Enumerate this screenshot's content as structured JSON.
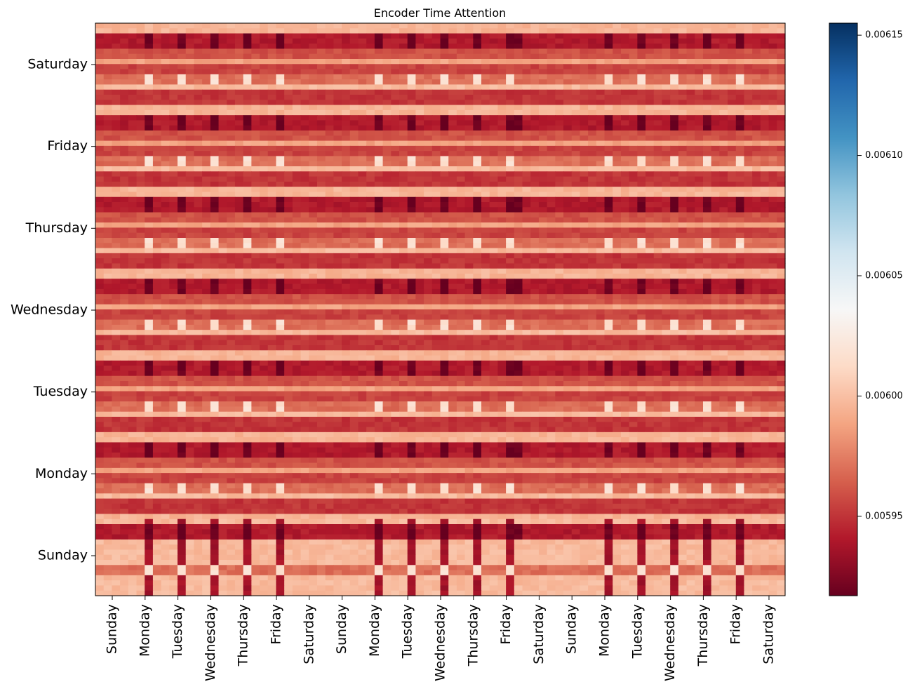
{
  "chart_data": {
    "type": "heatmap",
    "title": "Encoder Time Attention",
    "xlabel": "",
    "ylabel": "",
    "x_tick_labels": [
      "Sunday",
      "Monday",
      "Tuesday",
      "Wednesday",
      "Thursday",
      "Friday",
      "Saturday",
      "Sunday",
      "Monday",
      "Tuesday",
      "Wednesday",
      "Thursday",
      "Friday",
      "Saturday",
      "Sunday",
      "Monday",
      "Tuesday",
      "Wednesday",
      "Thursday",
      "Friday",
      "Saturday"
    ],
    "y_tick_labels": [
      "Saturday",
      "Friday",
      "Thursday",
      "Wednesday",
      "Tuesday",
      "Monday",
      "Sunday"
    ],
    "colormap": "RdBu",
    "colors": {
      "low": "#67001f",
      "mid": "#f7f7f7",
      "high": "#053061"
    },
    "colorbar": {
      "range": [
        0.005917,
        0.006155
      ],
      "ticks": [
        0.00595,
        0.006,
        0.00605,
        0.0061,
        0.00615
      ],
      "tick_labels": [
        "0.00595",
        "0.00600",
        "0.00605",
        "0.00610",
        "0.00615"
      ]
    },
    "grid": false,
    "note_values": "Attention weights between 7-day query rows and 21-day key columns; values range ~0.005917–0.006155."
  }
}
